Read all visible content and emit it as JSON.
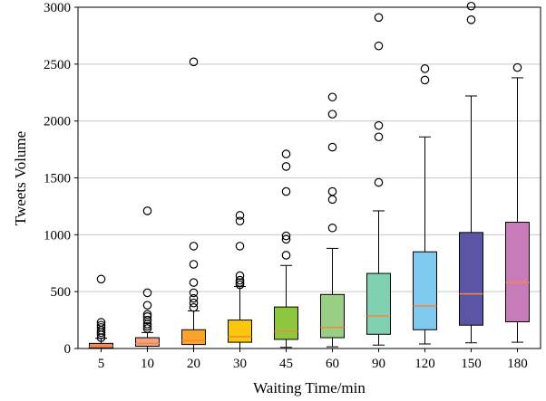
{
  "chart_data": {
    "type": "box",
    "title": "",
    "xlabel": "Waiting Time/min",
    "ylabel": "Tweets Volume",
    "ylim": [
      0,
      3000
    ],
    "yticks": [
      0,
      500,
      1000,
      1500,
      2000,
      2500,
      3000
    ],
    "grid": "horizontal",
    "categories": [
      "5",
      "10",
      "20",
      "30",
      "45",
      "60",
      "90",
      "120",
      "150",
      "180"
    ],
    "colors": [
      "#f08a6c",
      "#f4a183",
      "#f7a428",
      "#fbc60e",
      "#8dc63f",
      "#99cf84",
      "#7fd1b2",
      "#7fc8ee",
      "#5b55a6",
      "#c77bb8"
    ],
    "median_color": "#f5883c",
    "boxes": [
      {
        "category": "5",
        "whisker_low": 0,
        "q1": 5,
        "median": 20,
        "q3": 45,
        "whisker_high": 90,
        "outliers": [
          95,
          120,
          140,
          160,
          185,
          205,
          230,
          610
        ]
      },
      {
        "category": "10",
        "whisker_low": 0,
        "q1": 20,
        "median": 45,
        "q3": 95,
        "whisker_high": 140,
        "outliers": [
          175,
          195,
          215,
          250,
          280,
          300,
          380,
          490,
          1210
        ]
      },
      {
        "category": "20",
        "whisker_low": 0,
        "q1": 35,
        "median": 70,
        "q3": 165,
        "whisker_high": 330,
        "outliers": [
          360,
          400,
          440,
          490,
          580,
          740,
          900,
          2520
        ]
      },
      {
        "category": "30",
        "whisker_low": 0,
        "q1": 55,
        "median": 105,
        "q3": 250,
        "whisker_high": 545,
        "outliers": [
          560,
          580,
          600,
          640,
          900,
          1120,
          1170
        ]
      },
      {
        "category": "45",
        "whisker_low": 10,
        "q1": 80,
        "median": 150,
        "q3": 365,
        "whisker_high": 730,
        "outliers": [
          820,
          960,
          990,
          1380,
          1600,
          1710
        ]
      },
      {
        "category": "60",
        "whisker_low": 15,
        "q1": 95,
        "median": 185,
        "q3": 475,
        "whisker_high": 880,
        "outliers": [
          1060,
          1310,
          1380,
          1770,
          2060,
          2210
        ]
      },
      {
        "category": "90",
        "whisker_low": 30,
        "q1": 125,
        "median": 285,
        "q3": 660,
        "whisker_high": 1210,
        "outliers": [
          1460,
          1860,
          1960,
          2660,
          2910
        ]
      },
      {
        "category": "120",
        "whisker_low": 40,
        "q1": 165,
        "median": 375,
        "q3": 850,
        "whisker_high": 1860,
        "outliers": [
          2360,
          2460
        ]
      },
      {
        "category": "150",
        "whisker_low": 50,
        "q1": 205,
        "median": 480,
        "q3": 1020,
        "whisker_high": 2220,
        "outliers": [
          2890,
          3010
        ]
      },
      {
        "category": "180",
        "whisker_low": 55,
        "q1": 235,
        "median": 580,
        "q3": 1110,
        "whisker_high": 2380,
        "outliers": [
          2470
        ]
      }
    ]
  }
}
